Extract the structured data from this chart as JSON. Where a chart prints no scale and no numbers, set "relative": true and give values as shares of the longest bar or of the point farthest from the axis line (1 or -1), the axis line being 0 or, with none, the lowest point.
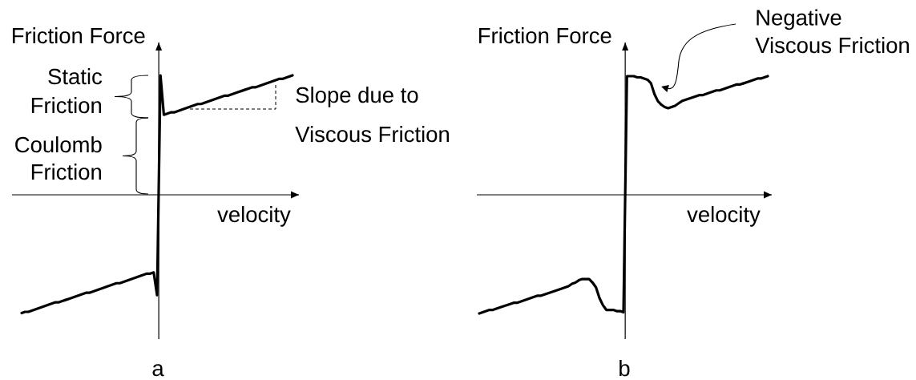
{
  "chart_data": [
    {
      "type": "line",
      "title": "a",
      "xlabel": "velocity",
      "ylabel": "Friction Force",
      "relative": true,
      "categories": [
        null,
        null,
        null,
        null,
        null,
        null,
        null,
        null,
        null,
        null,
        null,
        null,
        null,
        null,
        null,
        null,
        null,
        null,
        null,
        null,
        null,
        null,
        null,
        null,
        null,
        null,
        null,
        null,
        null,
        null,
        null,
        null,
        null,
        null,
        null,
        null,
        null,
        null,
        null,
        null,
        null,
        null,
        null,
        null,
        null,
        null,
        null,
        null,
        null,
        null,
        null,
        null,
        null,
        null,
        null,
        null,
        null,
        null,
        null,
        null,
        null,
        null,
        null,
        null,
        null,
        null,
        null,
        null,
        null,
        null,
        null,
        null,
        null,
        null,
        null,
        null,
        null,
        null,
        null,
        null,
        null
      ],
      "series": [
        {
          "color": "#000000",
          "values": [
            -0.99,
            -0.98,
            -0.98,
            -0.97,
            -0.96,
            -0.95,
            -0.94,
            -0.93,
            -0.92,
            -0.91,
            -0.9,
            -0.9,
            -0.89,
            -0.88,
            -0.87,
            -0.86,
            -0.85,
            -0.84,
            -0.83,
            -0.82,
            -0.82,
            -0.81,
            -0.8,
            -0.79,
            -0.78,
            -0.77,
            -0.76,
            -0.75,
            -0.74,
            -0.74,
            -0.73,
            -0.72,
            -0.71,
            -0.7,
            -0.69,
            -0.68,
            -0.67,
            -0.66,
            -0.66,
            -0.65,
            -0.84,
            1.0,
            0.67,
            0.68,
            0.69,
            0.69,
            0.7,
            0.71,
            0.72,
            0.73,
            0.74,
            0.75,
            0.76,
            0.76,
            0.77,
            0.78,
            0.79,
            0.8,
            0.81,
            0.82,
            0.83,
            0.83,
            0.84,
            0.85,
            0.86,
            0.87,
            0.88,
            0.89,
            0.9,
            0.9,
            0.91,
            0.92,
            0.93,
            0.94,
            0.95,
            0.96,
            0.97,
            0.97,
            0.98,
            0.99,
            1.0
          ]
        }
      ],
      "annotations": [
        "Static Friction",
        "Coulomb Friction",
        "Slope due to Viscous Friction"
      ]
    },
    {
      "type": "line",
      "title": "b",
      "xlabel": "velocity",
      "ylabel": "Friction Force",
      "relative": true,
      "categories": [
        null,
        null,
        null,
        null,
        null,
        null,
        null,
        null,
        null,
        null,
        null,
        null,
        null,
        null,
        null,
        null,
        null,
        null,
        null,
        null,
        null,
        null,
        null,
        null,
        null,
        null,
        null,
        null,
        null,
        null,
        null,
        null,
        null,
        null,
        null,
        null,
        null,
        null,
        null,
        null,
        null,
        null,
        null,
        null,
        null,
        null,
        null,
        null,
        null,
        null,
        null,
        null,
        null,
        null,
        null,
        null,
        null,
        null,
        null,
        null,
        null,
        null,
        null,
        null,
        null,
        null,
        null,
        null,
        null,
        null,
        null,
        null,
        null,
        null,
        null,
        null,
        null,
        null,
        null,
        null,
        null,
        null,
        null,
        null,
        null
      ],
      "series": [
        {
          "color": "#000000",
          "values": [
            -1.0,
            -0.99,
            -0.98,
            -0.97,
            -0.97,
            -0.96,
            -0.95,
            -0.94,
            -0.93,
            -0.92,
            -0.91,
            -0.91,
            -0.9,
            -0.89,
            -0.88,
            -0.87,
            -0.86,
            -0.85,
            -0.85,
            -0.84,
            -0.83,
            -0.82,
            -0.81,
            -0.8,
            -0.79,
            -0.78,
            -0.77,
            -0.75,
            -0.74,
            -0.72,
            -0.71,
            -0.71,
            -0.71,
            -0.74,
            -0.78,
            -0.87,
            -0.93,
            -0.97,
            -0.97,
            -0.97,
            -0.98,
            -0.98,
            -0.99,
            1.0,
            1.0,
            1.0,
            0.99,
            0.99,
            0.98,
            0.97,
            0.94,
            0.85,
            0.79,
            0.76,
            0.74,
            0.73,
            0.74,
            0.75,
            0.77,
            0.79,
            0.8,
            0.81,
            0.82,
            0.83,
            0.84,
            0.84,
            0.85,
            0.86,
            0.87,
            0.88,
            0.88,
            0.89,
            0.9,
            0.91,
            0.92,
            0.93,
            0.93,
            0.94,
            0.95,
            0.96,
            0.97,
            0.98,
            0.98,
            0.99,
            1.0
          ]
        }
      ],
      "annotations": [
        "Negative Viscous Friction"
      ]
    }
  ]
}
